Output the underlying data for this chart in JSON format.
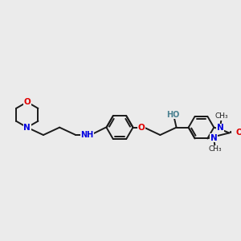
{
  "bg_color": "#ebebeb",
  "bond_color": "#1a1a1a",
  "N_color": "#0000e0",
  "O_color": "#e00000",
  "HO_color": "#4a8090",
  "NH_color": "#0000e0",
  "lw": 1.4,
  "figsize": [
    3.0,
    3.0
  ],
  "dpi": 100,
  "xlim": [
    0,
    20
  ],
  "ylim": [
    0,
    20
  ]
}
